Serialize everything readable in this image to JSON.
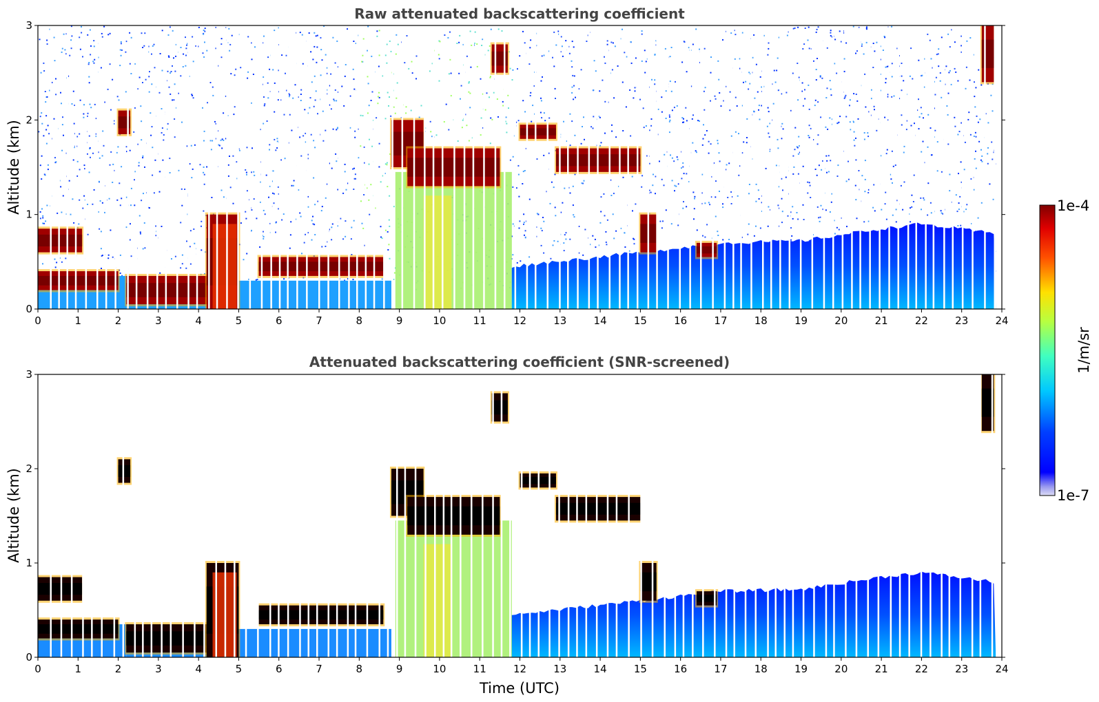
{
  "chart_data": [
    {
      "type": "heatmap",
      "title": "Raw attenuated backscattering coefficient",
      "xlabel": "",
      "ylabel": "Altitude (km)",
      "xlim": [
        0,
        24
      ],
      "ylim": [
        0,
        3
      ],
      "xticks": [
        "0",
        "1",
        "2",
        "3",
        "4",
        "5",
        "6",
        "7",
        "8",
        "9",
        "10",
        "11",
        "12",
        "13",
        "14",
        "15",
        "16",
        "17",
        "18",
        "19",
        "20",
        "21",
        "22",
        "23",
        "24"
      ],
      "yticks": [
        "0",
        "1",
        "2",
        "3"
      ],
      "cloud_layers": [
        {
          "t_start": 0.0,
          "t_end": 1.1,
          "alt_low": 0.6,
          "alt_high": 0.85
        },
        {
          "t_start": 0.0,
          "t_end": 2.0,
          "alt_low": 0.2,
          "alt_high": 0.4
        },
        {
          "t_start": 2.0,
          "t_end": 2.3,
          "alt_low": 1.85,
          "alt_high": 2.1
        },
        {
          "t_start": 2.2,
          "t_end": 4.2,
          "alt_low": 0.05,
          "alt_high": 0.35
        },
        {
          "t_start": 4.2,
          "t_end": 5.0,
          "alt_low": 0.0,
          "alt_high": 1.0
        },
        {
          "t_start": 5.5,
          "t_end": 8.6,
          "alt_low": 0.35,
          "alt_high": 0.55
        },
        {
          "t_start": 8.8,
          "t_end": 9.6,
          "alt_low": 1.5,
          "alt_high": 2.0
        },
        {
          "t_start": 9.2,
          "t_end": 11.5,
          "alt_low": 1.3,
          "alt_high": 1.7
        },
        {
          "t_start": 11.3,
          "t_end": 11.7,
          "alt_low": 2.5,
          "alt_high": 2.8
        },
        {
          "t_start": 12.0,
          "t_end": 12.9,
          "alt_low": 1.8,
          "alt_high": 1.95
        },
        {
          "t_start": 12.9,
          "t_end": 15.0,
          "alt_low": 1.45,
          "alt_high": 1.7
        },
        {
          "t_start": 15.0,
          "t_end": 15.4,
          "alt_low": 0.6,
          "alt_high": 1.0
        },
        {
          "t_start": 16.4,
          "t_end": 16.9,
          "alt_low": 0.55,
          "alt_high": 0.7
        },
        {
          "t_start": 23.5,
          "t_end": 23.8,
          "alt_low": 2.4,
          "alt_high": 3.0
        }
      ],
      "boundary_layer_top_km": [
        {
          "t": 11.8,
          "alt": 0.45
        },
        {
          "t": 15.0,
          "alt": 0.6
        },
        {
          "t": 17.0,
          "alt": 0.7
        },
        {
          "t": 19.0,
          "alt": 0.72
        },
        {
          "t": 21.0,
          "alt": 0.85
        },
        {
          "t": 22.0,
          "alt": 0.9
        },
        {
          "t": 23.8,
          "alt": 0.8
        }
      ]
    },
    {
      "type": "heatmap",
      "title": "Attenuated backscattering coefficient (SNR-screened)",
      "xlabel": "Time (UTC)",
      "ylabel": "Altitude (km)",
      "xlim": [
        0,
        24
      ],
      "ylim": [
        0,
        3
      ],
      "xticks": [
        "0",
        "1",
        "2",
        "3",
        "4",
        "5",
        "6",
        "7",
        "8",
        "9",
        "10",
        "11",
        "12",
        "13",
        "14",
        "15",
        "16",
        "17",
        "18",
        "19",
        "20",
        "21",
        "22",
        "23",
        "24"
      ],
      "yticks": [
        "0",
        "1",
        "2",
        "3"
      ]
    }
  ],
  "colorbar": {
    "label": "1/m/sr",
    "max_label": "1e-4",
    "min_label": "1e-7",
    "colormap": "jet",
    "scale": "log"
  },
  "colors": {
    "title": "#444444",
    "background": "#ffffff"
  }
}
